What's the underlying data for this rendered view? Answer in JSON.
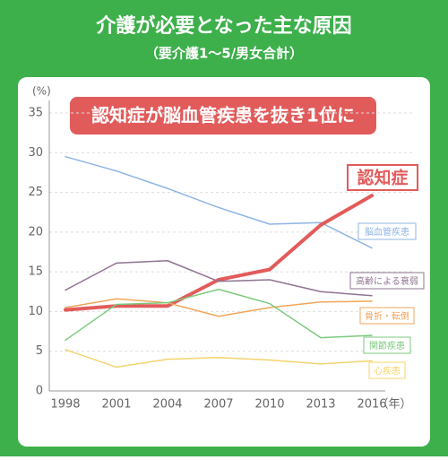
{
  "chart_data": {
    "type": "line",
    "title": "介護が必要となった主な原因",
    "subtitle": "（要介護1～5/男女合計）",
    "annotation": "認知症が脳血管疾患を抜き1位に",
    "y_unit": "(%)",
    "x_unit": "（年）",
    "categories": [
      "1998",
      "2001",
      "2004",
      "2007",
      "2010",
      "2013",
      "2016"
    ],
    "ylim": [
      0,
      35
    ],
    "yticks": [
      0,
      5,
      10,
      15,
      20,
      25,
      30,
      35
    ],
    "grid": true,
    "series": [
      {
        "name": "脳血管疾患",
        "color": "#8fb4e3",
        "values": [
          29.5,
          27.7,
          25.5,
          23.1,
          21.0,
          21.2,
          18.0
        ]
      },
      {
        "name": "認知症",
        "color": "#e25b5b",
        "values": [
          10.2,
          10.7,
          10.7,
          14.0,
          15.3,
          20.9,
          24.6
        ]
      },
      {
        "name": "高齢による衰弱",
        "color": "#8e7490",
        "values": [
          12.7,
          16.1,
          16.4,
          13.8,
          14.0,
          12.5,
          12.0
        ]
      },
      {
        "name": "骨折・転倒",
        "color": "#f0a55a",
        "values": [
          10.5,
          11.6,
          11.1,
          9.4,
          10.5,
          11.2,
          11.3
        ]
      },
      {
        "name": "関節疾患",
        "color": "#7dc97d",
        "values": [
          6.4,
          10.9,
          11.1,
          12.8,
          11.0,
          6.7,
          7.0
        ]
      },
      {
        "name": "心疾患",
        "color": "#f3d46e",
        "values": [
          5.2,
          3.0,
          4.0,
          4.2,
          3.9,
          3.4,
          3.8
        ]
      }
    ]
  }
}
